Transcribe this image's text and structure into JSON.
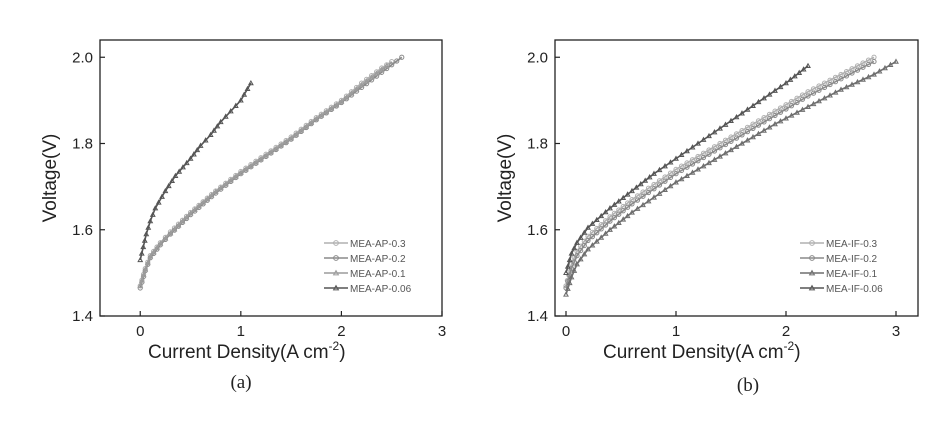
{
  "chart_data": [
    {
      "type": "line",
      "caption": "(a)",
      "xlabel": "Current Density(A cm",
      "xlabel_sup": "-2",
      "xlabel_close": ")",
      "ylabel": "Voltage(V)",
      "xlim": [
        -0.4,
        3.0
      ],
      "ylim": [
        1.4,
        2.04
      ],
      "xticks": [
        {
          "v": 0,
          "label": "0"
        },
        {
          "v": 1,
          "label": "1"
        },
        {
          "v": 2,
          "label": "2"
        },
        {
          "v": 3,
          "label": "3"
        }
      ],
      "yticks": [
        {
          "v": 1.4,
          "label": "1.4"
        },
        {
          "v": 1.6,
          "label": "1.6"
        },
        {
          "v": 1.8,
          "label": "1.8"
        },
        {
          "v": 2.0,
          "label": "2.0"
        }
      ],
      "legend_position": "bottom-right",
      "series": [
        {
          "name": "MEA-AP-0.3",
          "color": "#b0b0b0",
          "marker": "circle",
          "points": [
            [
              0,
              1.47
            ],
            [
              0.05,
              1.51
            ],
            [
              0.1,
              1.54
            ],
            [
              0.2,
              1.57
            ],
            [
              0.3,
              1.595
            ],
            [
              0.5,
              1.64
            ],
            [
              0.75,
              1.69
            ],
            [
              1.0,
              1.735
            ],
            [
              1.25,
              1.775
            ],
            [
              1.5,
              1.815
            ],
            [
              1.75,
              1.86
            ],
            [
              2.0,
              1.9
            ],
            [
              2.2,
              1.94
            ],
            [
              2.4,
              1.975
            ],
            [
              2.5,
              1.99
            ]
          ]
        },
        {
          "name": "MEA-AP-0.2",
          "color": "#8a8a8a",
          "marker": "circle",
          "points": [
            [
              0,
              1.465
            ],
            [
              0.05,
              1.505
            ],
            [
              0.1,
              1.535
            ],
            [
              0.2,
              1.565
            ],
            [
              0.3,
              1.59
            ],
            [
              0.5,
              1.635
            ],
            [
              0.75,
              1.685
            ],
            [
              1.0,
              1.73
            ],
            [
              1.25,
              1.77
            ],
            [
              1.5,
              1.81
            ],
            [
              1.75,
              1.855
            ],
            [
              2.0,
              1.895
            ],
            [
              2.2,
              1.93
            ],
            [
              2.4,
              1.965
            ],
            [
              2.6,
              2.0
            ]
          ]
        },
        {
          "name": "MEA-AP-0.1",
          "color": "#9c9c9c",
          "marker": "triangle",
          "points": [
            [
              0,
              1.47
            ],
            [
              0.05,
              1.508
            ],
            [
              0.1,
              1.538
            ],
            [
              0.2,
              1.568
            ],
            [
              0.3,
              1.592
            ],
            [
              0.5,
              1.638
            ],
            [
              0.75,
              1.688
            ],
            [
              1.0,
              1.732
            ],
            [
              1.25,
              1.772
            ],
            [
              1.5,
              1.812
            ],
            [
              1.75,
              1.857
            ],
            [
              2.0,
              1.897
            ],
            [
              2.2,
              1.935
            ],
            [
              2.45,
              1.98
            ]
          ]
        },
        {
          "name": "MEA-AP-0.06",
          "color": "#555555",
          "marker": "triangle",
          "points": [
            [
              0,
              1.53
            ],
            [
              0.03,
              1.56
            ],
            [
              0.06,
              1.59
            ],
            [
              0.1,
              1.62
            ],
            [
              0.15,
              1.65
            ],
            [
              0.25,
              1.69
            ],
            [
              0.35,
              1.725
            ],
            [
              0.5,
              1.765
            ],
            [
              0.6,
              1.795
            ],
            [
              0.7,
              1.82
            ],
            [
              0.8,
              1.85
            ],
            [
              0.9,
              1.875
            ],
            [
              1.0,
              1.9
            ],
            [
              1.1,
              1.94
            ]
          ]
        }
      ]
    },
    {
      "type": "line",
      "caption": "(b)",
      "xlabel": "Current Density(A cm",
      "xlabel_sup": "-2",
      "xlabel_close": ")",
      "ylabel": "Voltage(V)",
      "xlim": [
        -0.1,
        3.2
      ],
      "ylim": [
        1.4,
        2.04
      ],
      "xticks": [
        {
          "v": 0,
          "label": "0"
        },
        {
          "v": 1,
          "label": "1"
        },
        {
          "v": 2,
          "label": "2"
        },
        {
          "v": 3,
          "label": "3"
        }
      ],
      "yticks": [
        {
          "v": 1.4,
          "label": "1.4"
        },
        {
          "v": 1.6,
          "label": "1.6"
        },
        {
          "v": 1.8,
          "label": "1.8"
        },
        {
          "v": 2.0,
          "label": "2.0"
        }
      ],
      "legend_position": "bottom-right",
      "series": [
        {
          "name": "MEA-IF-0.3",
          "color": "#b0b0b0",
          "marker": "circle",
          "points": [
            [
              0,
              1.47
            ],
            [
              0.05,
              1.52
            ],
            [
              0.1,
              1.55
            ],
            [
              0.2,
              1.585
            ],
            [
              0.4,
              1.63
            ],
            [
              0.6,
              1.67
            ],
            [
              0.8,
              1.705
            ],
            [
              1.0,
              1.74
            ],
            [
              1.3,
              1.785
            ],
            [
              1.6,
              1.83
            ],
            [
              1.9,
              1.875
            ],
            [
              2.2,
              1.92
            ],
            [
              2.5,
              1.96
            ],
            [
              2.8,
              2.0
            ]
          ]
        },
        {
          "name": "MEA-IF-0.2",
          "color": "#8a8a8a",
          "marker": "circle",
          "points": [
            [
              0,
              1.465
            ],
            [
              0.05,
              1.51
            ],
            [
              0.1,
              1.54
            ],
            [
              0.2,
              1.575
            ],
            [
              0.4,
              1.62
            ],
            [
              0.6,
              1.66
            ],
            [
              0.8,
              1.695
            ],
            [
              1.0,
              1.73
            ],
            [
              1.3,
              1.775
            ],
            [
              1.6,
              1.82
            ],
            [
              1.9,
              1.865
            ],
            [
              2.2,
              1.91
            ],
            [
              2.5,
              1.95
            ],
            [
              2.8,
              1.99
            ]
          ]
        },
        {
          "name": "MEA-IF-0.1",
          "color": "#6e6e6e",
          "marker": "triangle",
          "points": [
            [
              0,
              1.45
            ],
            [
              0.05,
              1.49
            ],
            [
              0.1,
              1.52
            ],
            [
              0.2,
              1.555
            ],
            [
              0.4,
              1.6
            ],
            [
              0.6,
              1.64
            ],
            [
              0.8,
              1.675
            ],
            [
              1.0,
              1.71
            ],
            [
              1.3,
              1.755
            ],
            [
              1.6,
              1.8
            ],
            [
              1.9,
              1.845
            ],
            [
              2.2,
              1.885
            ],
            [
              2.5,
              1.925
            ],
            [
              2.8,
              1.96
            ],
            [
              3.0,
              1.99
            ]
          ]
        },
        {
          "name": "MEA-IF-0.06",
          "color": "#555555",
          "marker": "triangle",
          "points": [
            [
              0,
              1.5
            ],
            [
              0.05,
              1.545
            ],
            [
              0.1,
              1.57
            ],
            [
              0.2,
              1.605
            ],
            [
              0.4,
              1.65
            ],
            [
              0.6,
              1.69
            ],
            [
              0.8,
              1.73
            ],
            [
              1.0,
              1.765
            ],
            [
              1.2,
              1.8
            ],
            [
              1.4,
              1.835
            ],
            [
              1.6,
              1.87
            ],
            [
              1.8,
              1.905
            ],
            [
              2.0,
              1.94
            ],
            [
              2.2,
              1.98
            ]
          ]
        }
      ]
    }
  ]
}
